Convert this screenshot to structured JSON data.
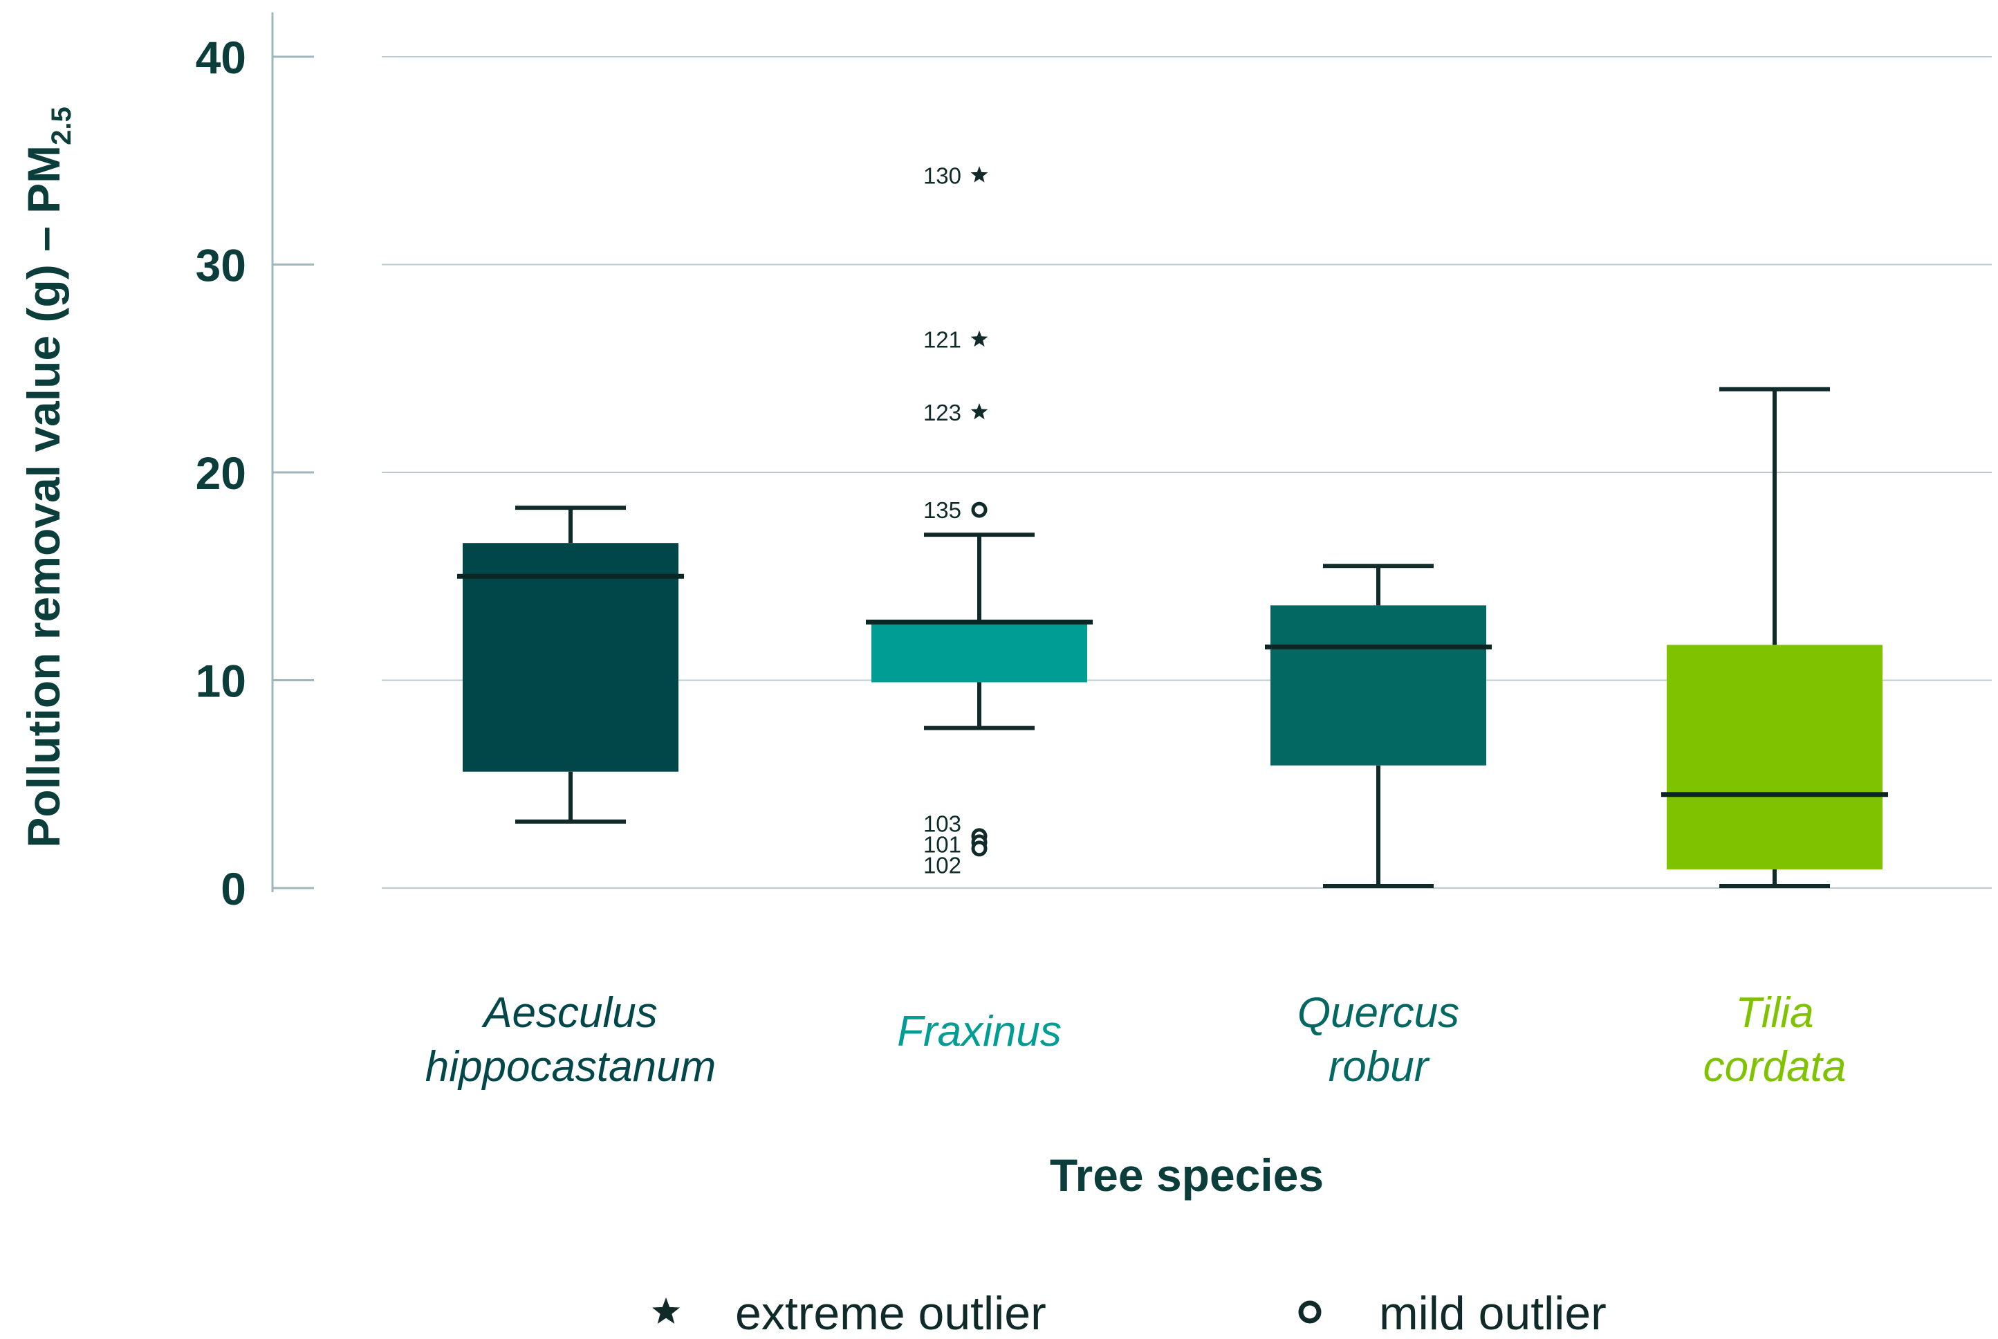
{
  "chart_data": {
    "type": "box",
    "xlabel": "Tree species",
    "ylabel": "Pollution removal value (g) – PM",
    "ylabel_subscript": "2.5",
    "ylim": [
      0,
      40
    ],
    "yticks": [
      0,
      10,
      20,
      30,
      40
    ],
    "grid": true,
    "legend_position": "bottom",
    "categories": [
      {
        "name": "Aesculus hippocastanum",
        "label_lines": [
          "Aesculus",
          "hippocastanum"
        ],
        "color": "#01474a",
        "whisker_low": 3.2,
        "q1": 5.6,
        "median": 15.0,
        "q3": 16.6,
        "whisker_high": 18.3,
        "outliers": []
      },
      {
        "name": "Fraxinus",
        "label_lines": [
          "Fraxinus"
        ],
        "color": "#009d94",
        "whisker_low": 7.7,
        "q1": 9.9,
        "median": 12.8,
        "q3": 12.8,
        "whisker_high": 17.0,
        "outliers": [
          {
            "id": "130",
            "value": 34.3,
            "kind": "extreme"
          },
          {
            "id": "121",
            "value": 26.4,
            "kind": "extreme"
          },
          {
            "id": "123",
            "value": 22.9,
            "kind": "extreme"
          },
          {
            "id": "135",
            "value": 18.2,
            "kind": "mild"
          },
          {
            "id": "103",
            "value": 2.5,
            "kind": "mild"
          },
          {
            "id": "101",
            "value": 2.2,
            "kind": "mild"
          },
          {
            "id": "102",
            "value": 1.9,
            "kind": "mild"
          }
        ]
      },
      {
        "name": "Quercus robur",
        "label_lines": [
          "Quercus",
          "robur"
        ],
        "color": "#036762",
        "whisker_low": 0.1,
        "q1": 5.9,
        "median": 11.6,
        "q3": 13.6,
        "whisker_high": 15.5,
        "outliers": []
      },
      {
        "name": "Tilia cordata",
        "label_lines": [
          "Tilia",
          "cordata"
        ],
        "color": "#7fc300",
        "whisker_low": 0.1,
        "q1": 0.9,
        "median": 4.5,
        "q3": 11.7,
        "whisker_high": 24.0,
        "outliers": []
      }
    ],
    "legend": [
      {
        "symbol": "star",
        "label": "extreme outlier"
      },
      {
        "symbol": "circle",
        "label": "mild outlier"
      }
    ]
  }
}
